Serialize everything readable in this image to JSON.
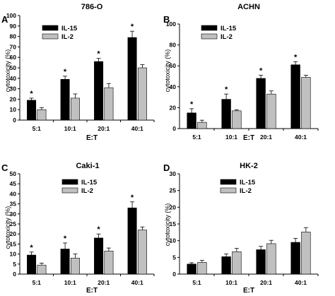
{
  "chart_data": [
    {
      "type": "bar",
      "panel": "A",
      "title": "786-O",
      "xlabel": "E:T",
      "ylabel": "cytotoxicity (%)",
      "ylim": [
        0,
        100
      ],
      "yticks": [
        0,
        10,
        20,
        30,
        40,
        50,
        60,
        70,
        80,
        90,
        100
      ],
      "categories": [
        "5:1",
        "10:1",
        "20:1",
        "40:1"
      ],
      "series": [
        {
          "name": "IL-15",
          "values": [
            19,
            39,
            56,
            79
          ],
          "errors": [
            2,
            3,
            3,
            6
          ]
        },
        {
          "name": "IL-2",
          "values": [
            10,
            21,
            31,
            50
          ],
          "errors": [
            2,
            4,
            4,
            3
          ]
        }
      ],
      "significance": [
        "*",
        "*",
        "*",
        "*"
      ],
      "legend_position": "top-left",
      "colors": {
        "IL-15": "#000000",
        "IL-2": "#c0c0c0"
      }
    },
    {
      "type": "bar",
      "panel": "B",
      "title": "ACHN",
      "xlabel": "E:T",
      "ylabel": "cytotoxicity (%)",
      "ylim": [
        0,
        100
      ],
      "yticks": [
        0,
        20,
        40,
        60,
        80,
        100
      ],
      "categories": [
        "5:1",
        "10:1",
        "20:1",
        "40:1"
      ],
      "series": [
        {
          "name": "IL-15",
          "values": [
            15,
            28,
            48,
            61
          ],
          "errors": [
            4,
            5,
            3,
            3
          ]
        },
        {
          "name": "IL-2",
          "values": [
            6,
            17,
            33,
            49
          ],
          "errors": [
            2,
            1,
            3,
            2
          ]
        }
      ],
      "significance": [
        "*",
        "*",
        "*",
        "*"
      ],
      "legend_position": "top-left",
      "colors": {
        "IL-15": "#000000",
        "IL-2": "#c0c0c0"
      }
    },
    {
      "type": "bar",
      "panel": "C",
      "title": "Caki-1",
      "xlabel": "E:T",
      "ylabel": "cytotoxicity (%)",
      "ylim": [
        0,
        50
      ],
      "yticks": [
        0,
        5,
        10,
        15,
        20,
        25,
        30,
        35,
        40,
        45,
        50
      ],
      "categories": [
        "5:1",
        "10:1",
        "20:1",
        "40:1"
      ],
      "series": [
        {
          "name": "IL-15",
          "values": [
            9.5,
            12.5,
            18,
            33
          ],
          "errors": [
            1.5,
            3,
            2,
            3
          ]
        },
        {
          "name": "IL-2",
          "values": [
            4.5,
            8,
            11.5,
            22
          ],
          "errors": [
            1,
            2,
            1.5,
            1.5
          ]
        }
      ],
      "significance": [
        "*",
        "*",
        "*",
        "*"
      ],
      "legend_position": "top-center",
      "colors": {
        "IL-15": "#000000",
        "IL-2": "#c0c0c0"
      }
    },
    {
      "type": "bar",
      "panel": "D",
      "title": "HK-2",
      "xlabel": "E:T",
      "ylabel": "cytotoxicity (%)",
      "ylim": [
        0,
        30
      ],
      "yticks": [
        0,
        5,
        10,
        15,
        20,
        25,
        30
      ],
      "categories": [
        "5:1",
        "10:1",
        "20:1",
        "40:1"
      ],
      "series": [
        {
          "name": "IL-15",
          "values": [
            3,
            5.2,
            7.3,
            9.5
          ],
          "errors": [
            0.4,
            0.8,
            1,
            1.2
          ]
        },
        {
          "name": "IL-2",
          "values": [
            3.5,
            6.7,
            9.1,
            12.6
          ],
          "errors": [
            0.6,
            1,
            1,
            1.3
          ]
        }
      ],
      "significance": [
        "",
        "",
        "",
        ""
      ],
      "legend_position": "top-center",
      "colors": {
        "IL-15": "#000000",
        "IL-2": "#c0c0c0"
      }
    }
  ]
}
